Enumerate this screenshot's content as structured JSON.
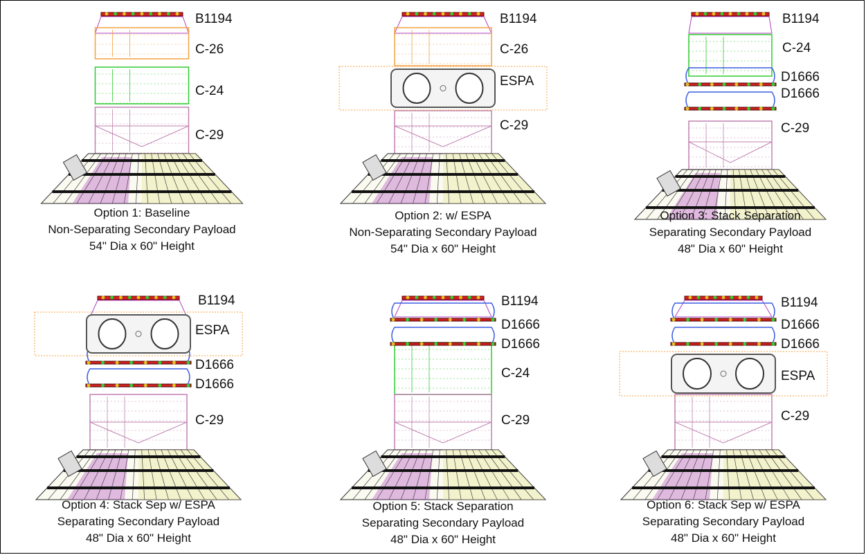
{
  "panels": [
    {
      "id": "option-1",
      "labels": [
        "B1194",
        "C-26",
        "C-24",
        "C-29"
      ],
      "caption": [
        "Option 1: Baseline",
        "Non-Separating Secondary Payload",
        "54\" Dia x 60\" Height"
      ]
    },
    {
      "id": "option-2",
      "labels": [
        "B1194",
        "C-26",
        "ESPA",
        "C-29"
      ],
      "caption": [
        "Option 2: w/ ESPA",
        "Non-Separating Secondary Payload",
        "54\" Dia x 60\" Height"
      ]
    },
    {
      "id": "option-3",
      "labels": [
        "B1194",
        "C-24",
        "D1666",
        "D1666",
        "C-29"
      ],
      "caption": [
        "Option 3: Stack Separation",
        "Separating Secondary Payload",
        "48\" Dia x 60\" Height"
      ]
    },
    {
      "id": "option-4",
      "labels": [
        "B1194",
        "ESPA",
        "D1666",
        "D1666",
        "C-29"
      ],
      "caption": [
        "Option 4: Stack Sep w/ ESPA",
        "Separating Secondary Payload",
        "48\" Dia x 60\" Height"
      ]
    },
    {
      "id": "option-5",
      "labels": [
        "B1194",
        "D1666",
        "D1666",
        "C-24",
        "C-29"
      ],
      "caption": [
        "Option 5: Stack Separation",
        "Separating Secondary Payload",
        "48\" Dia x 60\" Height"
      ]
    },
    {
      "id": "option-6",
      "labels": [
        "B1194",
        "D1666",
        "D1666",
        "ESPA",
        "C-29"
      ],
      "caption": [
        "Option 6: Stack Sep w/ ESPA",
        "Separating Secondary Payload",
        "48\" Dia x 60\" Height"
      ]
    }
  ],
  "colors": {
    "orange": "#f5a040",
    "green": "#2ecc2e",
    "blue": "#3a5be0",
    "pink": "#c080b0",
    "purple": "#b040c0",
    "red": "#d02020",
    "espa": "#555555",
    "cone": "#000000",
    "yellow": "#e8e8a0"
  }
}
